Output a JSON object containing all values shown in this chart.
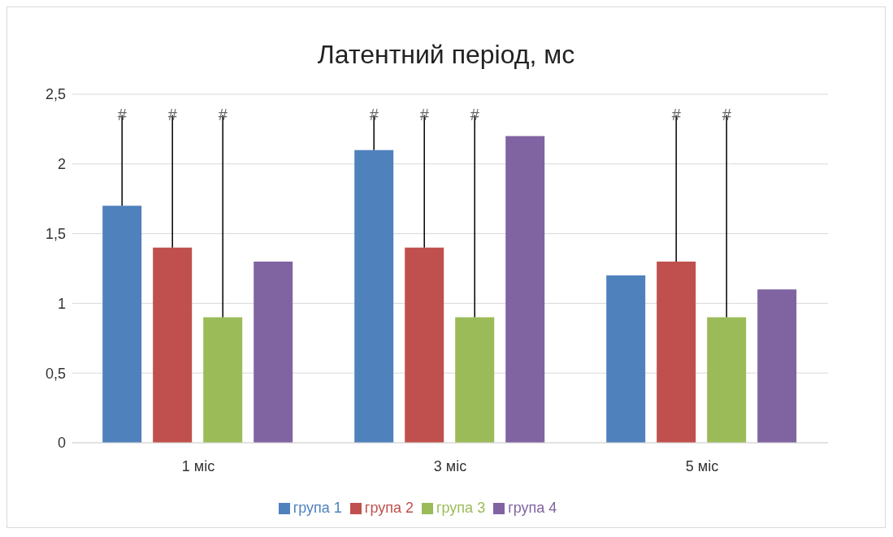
{
  "chart_data": {
    "type": "bar",
    "title": "Латентний період, мс",
    "categories": [
      "1 міс",
      "3 міс",
      "5 міс"
    ],
    "series": [
      {
        "name": "група 1",
        "color": "#4f81bd",
        "values": [
          1.7,
          2.1,
          1.2
        ],
        "errors": [
          [
            1.7,
            2.35
          ],
          [
            2.1,
            2.35
          ],
          null
        ]
      },
      {
        "name": "група 2",
        "color": "#c0504d",
        "values": [
          1.4,
          1.4,
          1.3
        ],
        "errors": [
          [
            1.4,
            2.35
          ],
          [
            1.4,
            2.35
          ],
          [
            1.3,
            2.35
          ]
        ]
      },
      {
        "name": "група 3",
        "color": "#9bbb59",
        "values": [
          0.9,
          0.9,
          0.9
        ],
        "errors": [
          [
            0.9,
            2.35
          ],
          [
            0.9,
            2.35
          ],
          [
            0.9,
            2.35
          ]
        ]
      },
      {
        "name": "група 4",
        "color": "#8064a2",
        "values": [
          1.3,
          2.2,
          1.1
        ]
      }
    ],
    "ylim": [
      0,
      2.5
    ],
    "yticks": [
      0,
      {
        "value": 0.5,
        "label": "0,5"
      },
      1,
      {
        "value": 1.5,
        "label": "1,5"
      },
      2,
      {
        "value": 2.5,
        "label": "2,5"
      }
    ],
    "grid": "y",
    "legend": "bottom",
    "annotations": [
      "#",
      "#",
      "#",
      "#",
      "#",
      "#",
      "#",
      "#"
    ]
  }
}
